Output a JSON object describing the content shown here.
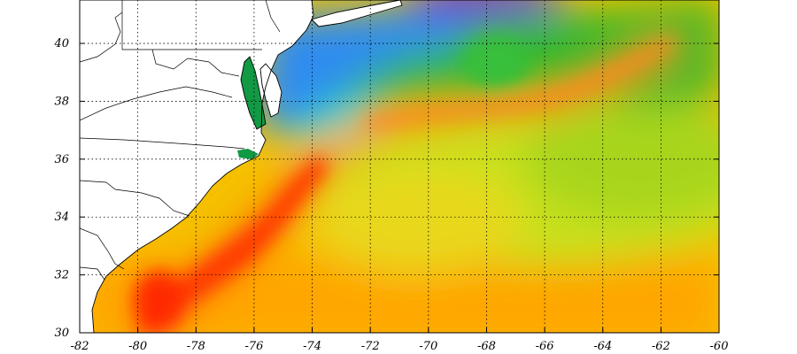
{
  "map": {
    "lon_range": [
      -82,
      -60
    ],
    "lat_range": [
      30,
      41.5
    ],
    "grid": "dotted",
    "x_ticks": [
      "-82",
      "-80",
      "-78",
      "-76",
      "-74",
      "-72",
      "-70",
      "-68",
      "-66",
      "-64",
      "-62",
      "-60"
    ],
    "y_ticks": [
      "30",
      "32",
      "34",
      "36",
      "38",
      "40"
    ],
    "colors": {
      "warmest": "#ff2a00",
      "warm": "#ffaa00",
      "mild": "#ccee22",
      "green": "#33bb22",
      "cyan": "#22ddee",
      "blue": "#3377ff",
      "coldest": "#6622dd",
      "land": "#ffffff",
      "bay_water": "#119944"
    }
  }
}
